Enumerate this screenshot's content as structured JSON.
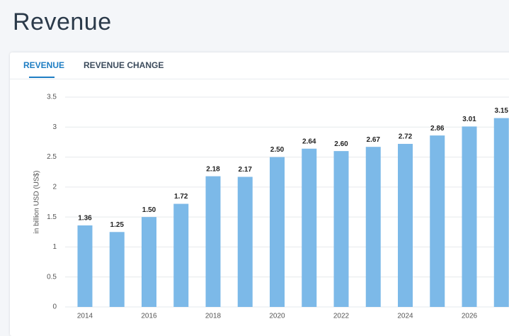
{
  "page_title": "Revenue",
  "tabs": [
    "REVENUE",
    "REVENUE CHANGE"
  ],
  "chart_data": {
    "type": "bar",
    "y_label": "in billion USD (US$)",
    "categories": [
      "2014",
      null,
      "2016",
      null,
      "2018",
      null,
      "2020",
      null,
      "2022",
      null,
      "2024",
      null,
      "2026",
      null
    ],
    "values": [
      1.36,
      1.25,
      1.5,
      1.72,
      2.18,
      2.17,
      2.5,
      2.64,
      2.6,
      2.67,
      2.72,
      2.86,
      3.01,
      3.15
    ],
    "value_labels": [
      "1.36",
      "1.25",
      "1.50",
      "1.72",
      "2.18",
      "2.17",
      "2.50",
      "2.64",
      "2.60",
      "2.67",
      "2.72",
      "2.86",
      "3.01",
      "3.15"
    ],
    "color": "#7cb9e8",
    "ylim": [
      0,
      3.5
    ],
    "yticks": [
      0,
      0.5,
      1,
      1.5,
      2,
      2.5,
      3,
      3.5
    ],
    "grid": true
  }
}
